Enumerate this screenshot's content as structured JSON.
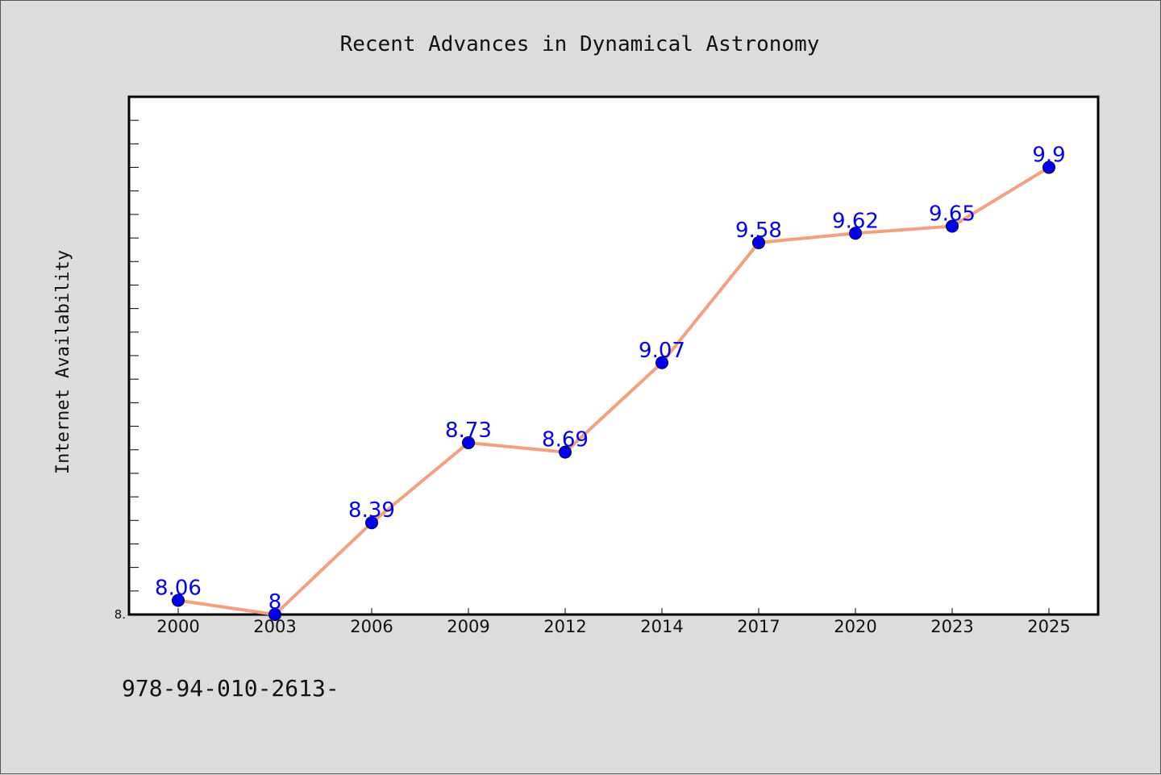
{
  "chart_data": {
    "type": "line",
    "title": "Recent Advances in Dynamical Astronomy",
    "xlabel": "",
    "ylabel": "Internet Availability",
    "categories": [
      "2000",
      "2003",
      "2006",
      "2009",
      "2012",
      "2014",
      "2017",
      "2020",
      "2023",
      "2025"
    ],
    "series": [
      {
        "values": [
          8.06,
          8,
          8.39,
          8.73,
          8.69,
          9.07,
          9.58,
          9.62,
          9.65,
          9.9
        ],
        "labels": [
          "8.06",
          "8",
          "8.39",
          "8.73",
          "8.69",
          "9.07",
          "9.58",
          "9.62",
          "9.65",
          "9.9"
        ],
        "line_color": "#f4a07e",
        "marker_color": "#0000ee"
      }
    ],
    "ylim": [
      8.0,
      10.2
    ],
    "y_min_label": "8.",
    "grid": false,
    "legend": "none"
  },
  "footer": {
    "text": "978-94-010-2613-"
  }
}
